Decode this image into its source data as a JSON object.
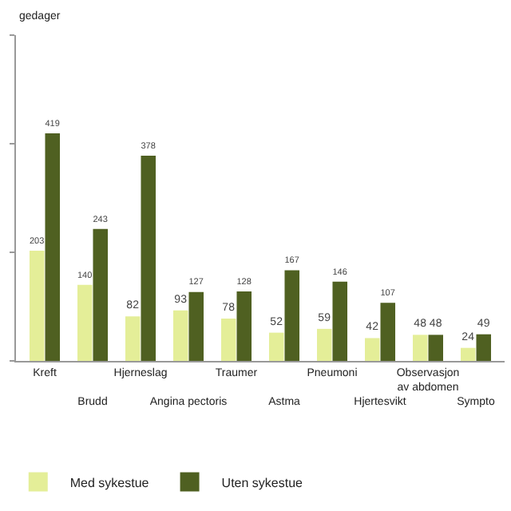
{
  "chart_data": {
    "type": "bar",
    "ylabel": "gedager",
    "categories": [
      "Kreft",
      "Brudd",
      "Hjerneslag",
      "Angina pectoris",
      "Traumer",
      "Astma",
      "Pneumoni",
      "Hjertesvikt",
      "Observasjon av abdomen",
      "Sympto"
    ],
    "series": [
      {
        "name": "Med sykestue",
        "color": "#e4ee98",
        "values": [
          203,
          140,
          82,
          93,
          78,
          52,
          59,
          42,
          48,
          24
        ]
      },
      {
        "name": "Uten sykestue",
        "color": "#4f6021",
        "values": [
          419,
          243,
          378,
          127,
          128,
          167,
          146,
          107,
          48,
          49
        ]
      }
    ],
    "ylim": [
      0,
      600
    ],
    "yticks": [
      {
        "value": 0,
        "label": null
      },
      {
        "value": 200,
        "label": null
      },
      {
        "value": 400,
        "label": null
      },
      {
        "value": 600,
        "label": null
      }
    ],
    "tick_labels": "x",
    "data_labels": true,
    "legend": "bottom left"
  }
}
